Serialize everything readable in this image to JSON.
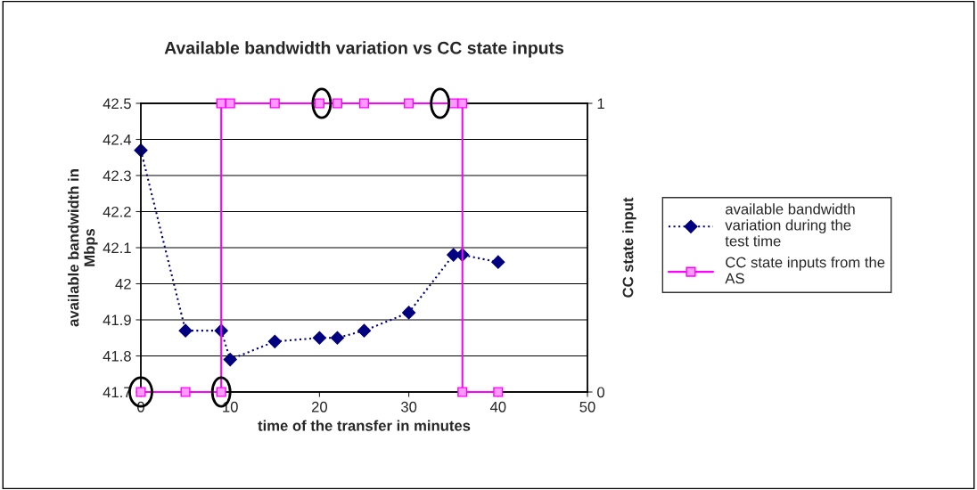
{
  "chart_data": {
    "type": "line",
    "title": "Available bandwidth variation vs CC state inputs",
    "xlabel": "time of the transfer in minutes",
    "ylabel": "available bandwidth in\nMbps",
    "y2label": "CC state input",
    "series": [
      {
        "name": "available bandwidth variation during the test time",
        "color": "#000080",
        "marker": "diamond",
        "line_style": "dotted",
        "x": [
          0,
          5,
          9,
          10,
          15,
          20,
          22,
          25,
          30,
          35,
          36,
          40
        ],
        "values": [
          42.37,
          41.87,
          41.87,
          41.79,
          41.84,
          41.85,
          41.85,
          41.87,
          41.92,
          42.08,
          42.08,
          42.06
        ]
      },
      {
        "name": "CC state inputs from the AS",
        "color": "#ff00ff",
        "marker": "square",
        "line_style": "solid",
        "axis": "y2",
        "x": [
          0,
          5,
          9,
          9,
          10,
          15,
          20,
          22,
          25,
          30,
          35,
          36,
          36,
          40
        ],
        "values": [
          0,
          0,
          0,
          1,
          1,
          1,
          1,
          1,
          1,
          1,
          1,
          1,
          0,
          0
        ]
      }
    ],
    "xlim": [
      0,
      50
    ],
    "xticks": [
      0,
      10,
      20,
      30,
      40,
      50
    ],
    "ylim": [
      41.7,
      42.5
    ],
    "yticks": [
      41.7,
      41.8,
      41.9,
      42,
      42.1,
      42.2,
      42.3,
      42.4,
      42.5
    ],
    "y2lim": [
      0,
      1
    ],
    "y2ticks": [
      0,
      1
    ],
    "grid": "y",
    "legend": "right"
  }
}
